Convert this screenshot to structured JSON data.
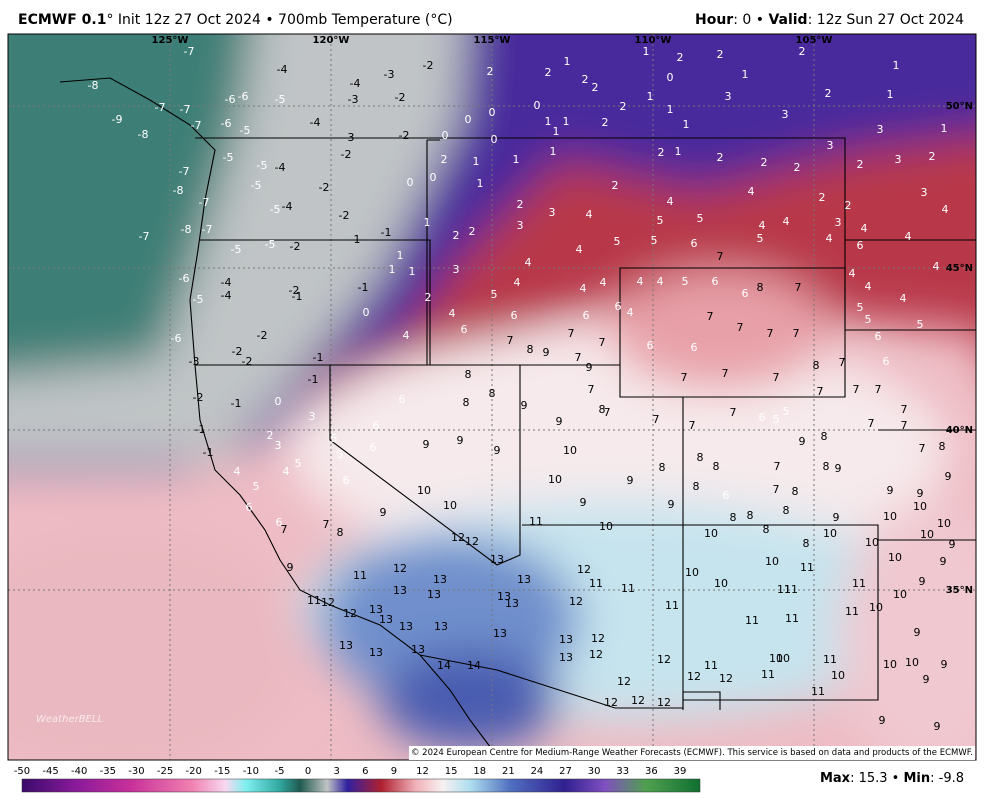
{
  "header": {
    "model": "ECMWF 0.1",
    "title": "° Init 12z 27 Oct 2024 • 700mb Temperature (°C)",
    "hour_label": "Hour",
    "hour_value": ": 0 • ",
    "valid_label": "Valid",
    "valid_value": ": 12z Sun 27 Oct 2024"
  },
  "map": {
    "longitude_labels": [
      "125°W",
      "120°W",
      "115°W",
      "110°W",
      "105°W"
    ],
    "latitude_labels": [
      "50°N",
      "45°N",
      "40°N",
      "35°N"
    ],
    "watermark": "WeatherBELL",
    "copyright": "© 2024 European Centre for Medium-Range Weather Forecasts (ECMWF). This service is based on data and products of the ECMWF.",
    "station_values": [
      -7,
      -4,
      -3,
      -2,
      2,
      2,
      1,
      2,
      2,
      1,
      2,
      2,
      0,
      1,
      2,
      1,
      -8,
      -7,
      -7,
      -6,
      -6,
      -5,
      -4,
      -3,
      -2,
      -9,
      -8,
      -7,
      -6,
      -5,
      -4,
      -3,
      0,
      0,
      0,
      0,
      1,
      1,
      1,
      2,
      2,
      1,
      1,
      1,
      3,
      3,
      2,
      1,
      3,
      1,
      -2,
      -2,
      -7,
      -5,
      -5,
      -4,
      -5,
      -8,
      -7,
      -5,
      -4,
      -2,
      0,
      2,
      0,
      1,
      1,
      1,
      0,
      1,
      2,
      1,
      2,
      2,
      2,
      3,
      2,
      3,
      2,
      -7,
      -8,
      -7,
      -5,
      -5,
      -2,
      -2,
      -1,
      -1,
      1,
      2,
      2,
      3,
      2,
      3,
      4,
      2,
      4,
      5,
      5,
      4,
      2,
      2,
      3,
      4,
      4,
      5,
      4,
      3,
      4,
      4,
      4,
      1,
      1,
      1,
      3,
      4,
      4,
      5,
      4,
      5,
      5,
      6,
      7,
      4,
      4,
      4,
      4,
      5,
      6,
      6,
      8,
      7,
      6,
      4,
      4,
      4,
      4,
      5,
      5,
      5,
      6,
      6,
      -6,
      -5,
      -4,
      -4,
      -2,
      -1,
      -1,
      0,
      2,
      4,
      6,
      6,
      6,
      6,
      4,
      7,
      7,
      7,
      7,
      -2,
      -6,
      -3,
      -2,
      -2,
      -1,
      4,
      7,
      8,
      9,
      7,
      7,
      7,
      6,
      6,
      8,
      7,
      7,
      7,
      7,
      7,
      7,
      7,
      -1,
      0,
      -1,
      -2,
      -1,
      -1,
      3,
      6,
      8,
      8,
      8,
      9,
      9,
      7,
      8,
      7,
      7,
      9,
      7,
      7,
      6,
      5,
      5,
      7,
      7,
      7,
      2,
      3,
      5,
      6,
      5,
      6,
      9,
      9,
      9,
      10,
      5,
      4,
      4,
      5,
      6,
      6,
      7,
      7,
      8,
      6,
      9,
      10,
      10,
      10,
      9,
      9,
      9,
      8,
      8,
      8,
      8,
      6,
      7,
      7,
      9,
      8,
      8,
      9,
      8,
      8,
      8,
      8,
      8,
      9,
      9,
      9,
      7,
      8,
      10,
      10,
      10,
      9,
      8,
      10,
      10,
      10,
      9,
      10,
      9,
      11,
      10,
      10,
      10,
      11,
      12,
      12,
      13,
      9,
      11,
      12,
      13,
      13,
      13,
      13,
      12,
      11,
      11,
      10,
      10,
      11,
      11,
      11,
      10,
      10,
      9,
      11,
      12,
      12,
      13,
      13,
      13,
      12,
      11,
      11,
      11,
      11,
      13,
      13,
      13,
      13,
      13,
      12,
      9,
      13,
      13,
      13,
      13,
      12,
      12,
      11,
      10,
      10,
      11,
      10,
      10,
      9,
      14,
      14,
      12,
      12,
      11,
      10,
      9,
      12,
      11,
      12,
      12,
      12,
      9,
      9
    ]
  },
  "colorbar": {
    "labels": [
      -50,
      -45,
      -40,
      -35,
      -30,
      -25,
      -20,
      -15,
      -10,
      -5,
      0,
      3,
      6,
      9,
      12,
      15,
      18,
      21,
      24,
      27,
      30,
      33,
      36,
      39
    ]
  },
  "footer": {
    "max_label": "Max",
    "max_value": ": 15.3 • ",
    "min_label": "Min",
    "min_value": ": -9.8"
  }
}
